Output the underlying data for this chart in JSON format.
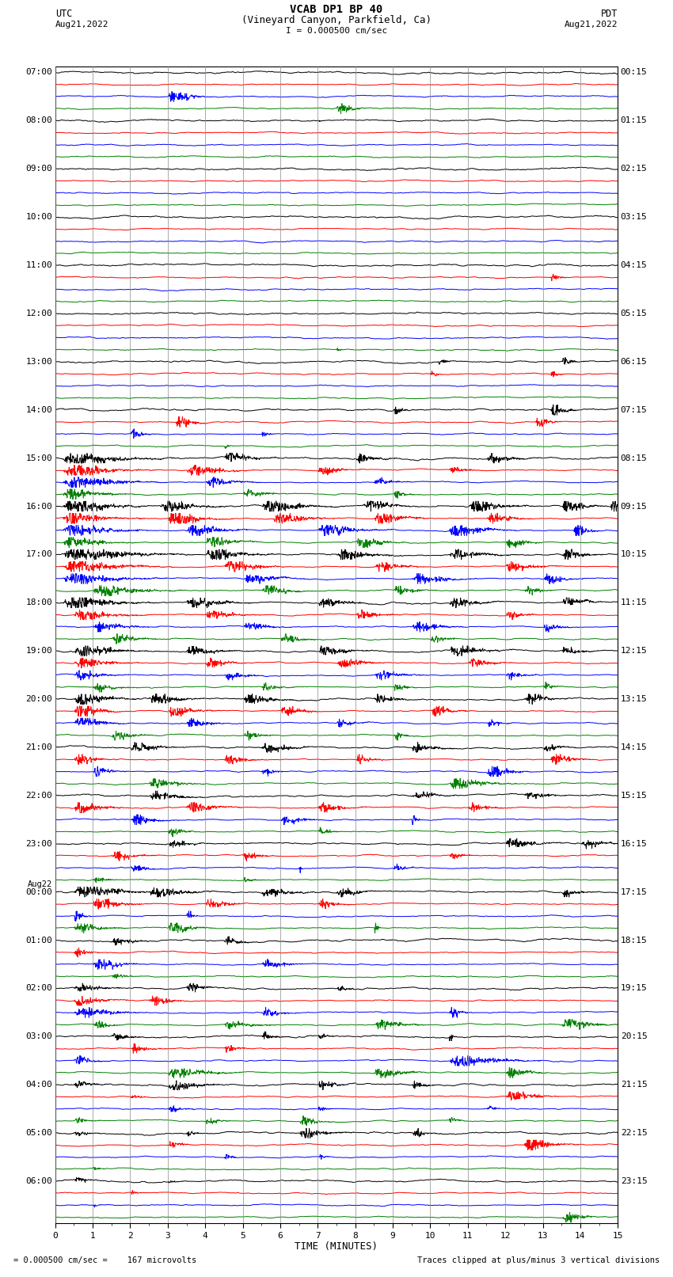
{
  "title_line1": "VCAB DP1 BP 40",
  "title_line2": "(Vineyard Canyon, Parkfield, Ca)",
  "scale_label": "I = 0.000500 cm/sec",
  "label_utc": "UTC",
  "label_date_left": "Aug21,2022",
  "label_pdt": "PDT",
  "label_date_right": "Aug21,2022",
  "xlabel": "TIME (MINUTES)",
  "footer_left": "= 0.000500 cm/sec =    167 microvolts",
  "footer_right": "Traces clipped at plus/minus 3 vertical divisions",
  "xlim": [
    0,
    15
  ],
  "xticks": [
    0,
    1,
    2,
    3,
    4,
    5,
    6,
    7,
    8,
    9,
    10,
    11,
    12,
    13,
    14,
    15
  ],
  "colors": [
    "black",
    "red",
    "blue",
    "green"
  ],
  "background_color": "#ffffff",
  "trace_lw": 0.7,
  "noise_base": 0.008
}
